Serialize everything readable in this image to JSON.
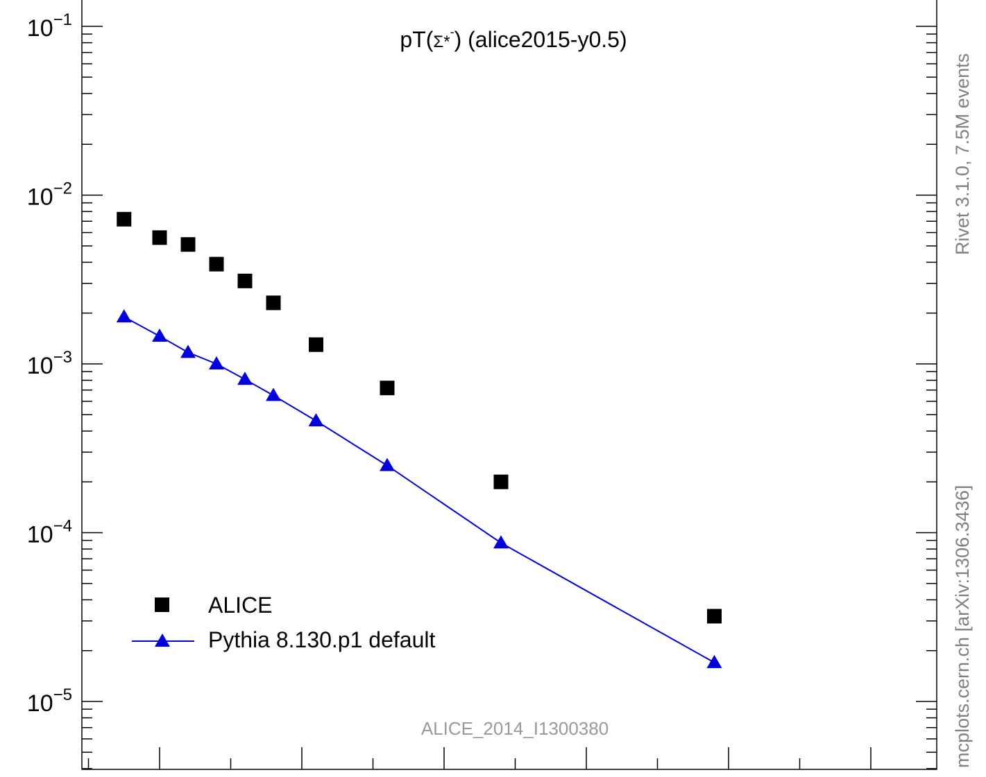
{
  "chart_data": {
    "type": "scatter",
    "title_main": "pT(",
    "title_symbol": "Σ*",
    "title_sup": "-",
    "title_tail": ") (alice2015-y0.5)",
    "xlabel": "",
    "ylabel": "",
    "yscale": "log",
    "ylim": [
      4e-06,
      0.15
    ],
    "xlim": [
      0.5,
      6.0
    ],
    "y_tick_labels": [
      {
        "value": 0.1,
        "base": "10",
        "exp": "−1"
      },
      {
        "value": 0.01,
        "base": "10",
        "exp": "−2"
      },
      {
        "value": 0.001,
        "base": "10",
        "exp": "−3"
      },
      {
        "value": 0.0001,
        "base": "10",
        "exp": "−4"
      },
      {
        "value": 1e-05,
        "base": "10",
        "exp": "−5"
      }
    ],
    "series": [
      {
        "name": "ALICE",
        "marker": "square",
        "color": "#000000",
        "x": [
          0.75,
          1.0,
          1.2,
          1.4,
          1.6,
          1.8,
          2.1,
          2.6,
          3.4,
          4.9
        ],
        "y": [
          0.0072,
          0.0056,
          0.0051,
          0.0039,
          0.0031,
          0.0023,
          0.0013,
          0.00072,
          0.0002,
          3.2e-05
        ]
      },
      {
        "name": "Pythia 8.130.p1 default",
        "marker": "triangle",
        "line": true,
        "color": "#0000dd",
        "x": [
          0.75,
          1.0,
          1.2,
          1.4,
          1.6,
          1.8,
          2.1,
          2.6,
          3.4,
          4.9
        ],
        "y": [
          0.0019,
          0.00146,
          0.00117,
          0.001,
          0.00081,
          0.00065,
          0.00046,
          0.00025,
          8.7e-05,
          1.7e-05
        ]
      }
    ],
    "legend": {
      "placement": "bottom-left"
    },
    "watermark": "ALICE_2014_I1300380",
    "side_label_top": "Rivet 3.1.0,  7.5M events",
    "side_label_bottom": "mcplots.cern.ch [arXiv:1306.3436]"
  }
}
